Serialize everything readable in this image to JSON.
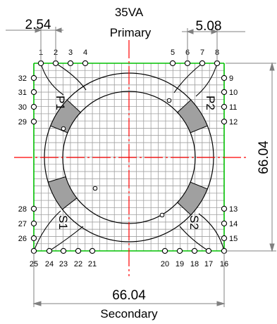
{
  "header": {
    "rating": "35VA",
    "primary": "Primary"
  },
  "footer": {
    "secondary": "Secondary"
  },
  "dimensions": {
    "pitch_top_left": "2.54",
    "pitch_top_right": "5.08",
    "width_bottom": "66.04",
    "height_right": "66.04"
  },
  "windings": {
    "p1": "P1",
    "p2": "P2",
    "s1": "S1",
    "s2": "S2"
  },
  "pins": {
    "top": [
      "1",
      "2",
      "3",
      "4",
      "5",
      "6",
      "7",
      "8"
    ],
    "right": [
      "9",
      "10",
      "11",
      "12",
      "13",
      "14",
      "15"
    ],
    "bottom": [
      "16",
      "17",
      "18",
      "19",
      "20",
      "21",
      "22",
      "23",
      "24",
      "25"
    ],
    "left": [
      "26",
      "27",
      "28",
      "29",
      "30",
      "31",
      "32"
    ]
  },
  "colors": {
    "grid": "#a0a0a0",
    "outline": "#00c000",
    "centerline": "#ff0000",
    "winding_block": "#a0a0a0",
    "dimension": "#808080"
  }
}
